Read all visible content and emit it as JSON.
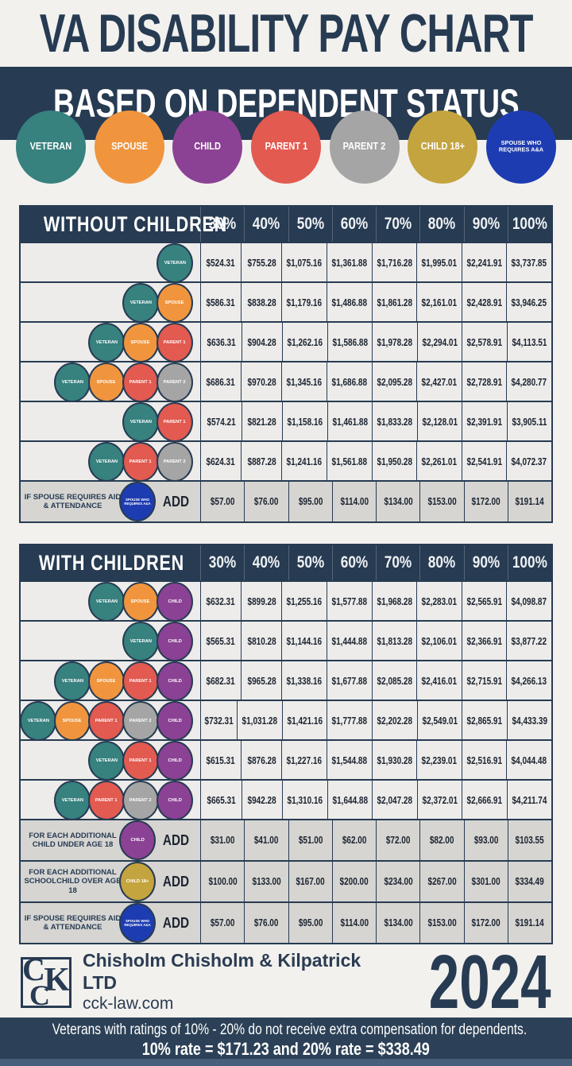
{
  "header": {
    "title": "VA DISABILITY PAY CHART",
    "subtitle": "BASED ON DEPENDENT STATUS"
  },
  "icon_types": {
    "veteran": {
      "label": "VETERAN",
      "color": "#37817f"
    },
    "spouse": {
      "label": "SPOUSE",
      "color": "#f0953e"
    },
    "child": {
      "label": "CHILD",
      "color": "#8b4294"
    },
    "parent1": {
      "label": "PARENT 1",
      "color": "#e25a50"
    },
    "parent2": {
      "label": "PARENT 2",
      "color": "#a5a5a5"
    },
    "child18": {
      "label": "CHILD 18+",
      "color": "#c4a43e"
    },
    "spouse_aaa": {
      "label": "SPOUSE WHO REQUIRES A&A",
      "color": "#1e3cb1"
    }
  },
  "legend": [
    "veteran",
    "spouse",
    "child",
    "parent1",
    "parent2",
    "child18",
    "spouse_aaa"
  ],
  "percent_headers": [
    "30%",
    "40%",
    "50%",
    "60%",
    "70%",
    "80%",
    "90%",
    "100%"
  ],
  "tables": [
    {
      "name": "WITHOUT CHILDREN",
      "rows": [
        {
          "icons": [
            "veteran"
          ],
          "values": [
            "$524.31",
            "$755.28",
            "$1,075.16",
            "$1,361.88",
            "$1,716.28",
            "$1,995.01",
            "$2,241.91",
            "$3,737.85"
          ]
        },
        {
          "icons": [
            "veteran",
            "spouse"
          ],
          "values": [
            "$586.31",
            "$838.28",
            "$1,179.16",
            "$1,486.88",
            "$1,861.28",
            "$2,161.01",
            "$2,428.91",
            "$3,946.25"
          ]
        },
        {
          "icons": [
            "veteran",
            "spouse",
            "parent1"
          ],
          "values": [
            "$636.31",
            "$904.28",
            "$1,262.16",
            "$1,586.88",
            "$1,978.28",
            "$2,294.01",
            "$2,578.91",
            "$4,113.51"
          ]
        },
        {
          "icons": [
            "veteran",
            "spouse",
            "parent1",
            "parent2"
          ],
          "values": [
            "$686.31",
            "$970.28",
            "$1,345.16",
            "$1,686.88",
            "$2,095.28",
            "$2,427.01",
            "$2,728.91",
            "$4,280.77"
          ]
        },
        {
          "icons": [
            "veteran",
            "parent1"
          ],
          "values": [
            "$574.21",
            "$821.28",
            "$1,158.16",
            "$1,461.88",
            "$1,833.28",
            "$2,128.01",
            "$2,391.91",
            "$3,905.11"
          ]
        },
        {
          "icons": [
            "veteran",
            "parent1",
            "parent2"
          ],
          "values": [
            "$624.31",
            "$887.28",
            "$1,241.16",
            "$1,561.88",
            "$1,950.28",
            "$2,261.01",
            "$2,541.91",
            "$4,072.37"
          ]
        },
        {
          "note": "IF SPOUSE REQUIRES AID & ATTENDANCE",
          "icons": [
            "spouse_aaa"
          ],
          "add_label": "ADD",
          "values": [
            "$57.00",
            "$76.00",
            "$95.00",
            "$114.00",
            "$134.00",
            "$153.00",
            "$172.00",
            "$191.14"
          ]
        }
      ]
    },
    {
      "name": "WITH CHILDREN",
      "rows": [
        {
          "icons": [
            "veteran",
            "spouse",
            "child"
          ],
          "values": [
            "$632.31",
            "$899.28",
            "$1,255.16",
            "$1,577.88",
            "$1,968.28",
            "$2,283.01",
            "$2,565.91",
            "$4,098.87"
          ]
        },
        {
          "icons": [
            "veteran",
            "child"
          ],
          "values": [
            "$565.31",
            "$810.28",
            "$1,144.16",
            "$1,444.88",
            "$1,813.28",
            "$2,106.01",
            "$2,366.91",
            "$3,877.22"
          ]
        },
        {
          "icons": [
            "veteran",
            "spouse",
            "parent1",
            "child"
          ],
          "values": [
            "$682.31",
            "$965.28",
            "$1,338.16",
            "$1,677.88",
            "$2,085.28",
            "$2,416.01",
            "$2,715.91",
            "$4,266.13"
          ]
        },
        {
          "icons": [
            "veteran",
            "spouse",
            "parent1",
            "parent2",
            "child"
          ],
          "values": [
            "$732.31",
            "$1,031.28",
            "$1,421.16",
            "$1,777.88",
            "$2,202.28",
            "$2,549.01",
            "$2,865.91",
            "$4,433.39"
          ]
        },
        {
          "icons": [
            "veteran",
            "parent1",
            "child"
          ],
          "values": [
            "$615.31",
            "$876.28",
            "$1,227.16",
            "$1,544.88",
            "$1,930.28",
            "$2,239.01",
            "$2,516.91",
            "$4,044.48"
          ]
        },
        {
          "icons": [
            "veteran",
            "parent1",
            "parent2",
            "child"
          ],
          "values": [
            "$665.31",
            "$942.28",
            "$1,310.16",
            "$1,644.88",
            "$2,047.28",
            "$2,372.01",
            "$2,666.91",
            "$4,211.74"
          ]
        },
        {
          "note": "FOR EACH ADDITIONAL CHILD UNDER AGE 18",
          "icons": [
            "child"
          ],
          "add_label": "ADD",
          "values": [
            "$31.00",
            "$41.00",
            "$51.00",
            "$62.00",
            "$72.00",
            "$82.00",
            "$93.00",
            "$103.55"
          ]
        },
        {
          "note": "FOR EACH ADDITIONAL SCHOOLCHILD OVER AGE 18",
          "icons": [
            "child18"
          ],
          "add_label": "ADD",
          "values": [
            "$100.00",
            "$133.00",
            "$167.00",
            "$200.00",
            "$234.00",
            "$267.00",
            "$301.00",
            "$334.49"
          ]
        },
        {
          "note": "IF SPOUSE REQUIRES AID & ATTENDANCE",
          "icons": [
            "spouse_aaa"
          ],
          "add_label": "ADD",
          "values": [
            "$57.00",
            "$76.00",
            "$95.00",
            "$114.00",
            "$134.00",
            "$153.00",
            "$172.00",
            "$191.14"
          ]
        }
      ]
    }
  ],
  "footer": {
    "logo_letters": [
      "C",
      "C",
      "K"
    ],
    "firm": "Chisholm Chisholm & Kilpatrick LTD",
    "url": "cck-law.com",
    "year": "2024"
  },
  "disclaimer": {
    "line1": "Veterans with ratings of 10% - 20% do not receive extra compensation for dependents.",
    "line2": "10% rate = $171.23  and  20% rate = $338.49"
  },
  "chart_data": [
    {
      "type": "table",
      "title": "WITHOUT CHILDREN",
      "columns": [
        "Dependent status",
        "30%",
        "40%",
        "50%",
        "60%",
        "70%",
        "80%",
        "90%",
        "100%"
      ],
      "rows": [
        [
          "Veteran",
          524.31,
          755.28,
          1075.16,
          1361.88,
          1716.28,
          1995.01,
          2241.91,
          3737.85
        ],
        [
          "Veteran + Spouse",
          586.31,
          838.28,
          1179.16,
          1486.88,
          1861.28,
          2161.01,
          2428.91,
          3946.25
        ],
        [
          "Veteran + Spouse + Parent 1",
          636.31,
          904.28,
          1262.16,
          1586.88,
          1978.28,
          2294.01,
          2578.91,
          4113.51
        ],
        [
          "Veteran + Spouse + Parent 1 + Parent 2",
          686.31,
          970.28,
          1345.16,
          1686.88,
          2095.28,
          2427.01,
          2728.91,
          4280.77
        ],
        [
          "Veteran + Parent 1",
          574.21,
          821.28,
          1158.16,
          1461.88,
          1833.28,
          2128.01,
          2391.91,
          3905.11
        ],
        [
          "Veteran + Parent 1 + Parent 2",
          624.31,
          887.28,
          1241.16,
          1561.88,
          1950.28,
          2261.01,
          2541.91,
          4072.37
        ],
        [
          "ADD if spouse requires Aid & Attendance",
          57.0,
          76.0,
          95.0,
          114.0,
          134.0,
          153.0,
          172.0,
          191.14
        ]
      ]
    },
    {
      "type": "table",
      "title": "WITH CHILDREN",
      "columns": [
        "Dependent status",
        "30%",
        "40%",
        "50%",
        "60%",
        "70%",
        "80%",
        "90%",
        "100%"
      ],
      "rows": [
        [
          "Veteran + Spouse + Child",
          632.31,
          899.28,
          1255.16,
          1577.88,
          1968.28,
          2283.01,
          2565.91,
          4098.87
        ],
        [
          "Veteran + Child",
          565.31,
          810.28,
          1144.16,
          1444.88,
          1813.28,
          2106.01,
          2366.91,
          3877.22
        ],
        [
          "Veteran + Spouse + Parent 1 + Child",
          682.31,
          965.28,
          1338.16,
          1677.88,
          2085.28,
          2416.01,
          2715.91,
          4266.13
        ],
        [
          "Veteran + Spouse + Parent 1 + Parent 2 + Child",
          732.31,
          1031.28,
          1421.16,
          1777.88,
          2202.28,
          2549.01,
          2865.91,
          4433.39
        ],
        [
          "Veteran + Parent 1 + Child",
          615.31,
          876.28,
          1227.16,
          1544.88,
          1930.28,
          2239.01,
          2516.91,
          4044.48
        ],
        [
          "Veteran + Parent 1 + Parent 2 + Child",
          665.31,
          942.28,
          1310.16,
          1644.88,
          2047.28,
          2372.01,
          2666.91,
          4211.74
        ],
        [
          "ADD for each additional child under age 18",
          31.0,
          41.0,
          51.0,
          62.0,
          72.0,
          82.0,
          93.0,
          103.55
        ],
        [
          "ADD for each additional schoolchild over age 18",
          100.0,
          133.0,
          167.0,
          200.0,
          234.0,
          267.0,
          301.0,
          334.49
        ],
        [
          "ADD if spouse requires Aid & Attendance",
          57.0,
          76.0,
          95.0,
          114.0,
          134.0,
          153.0,
          172.0,
          191.14
        ]
      ]
    }
  ]
}
